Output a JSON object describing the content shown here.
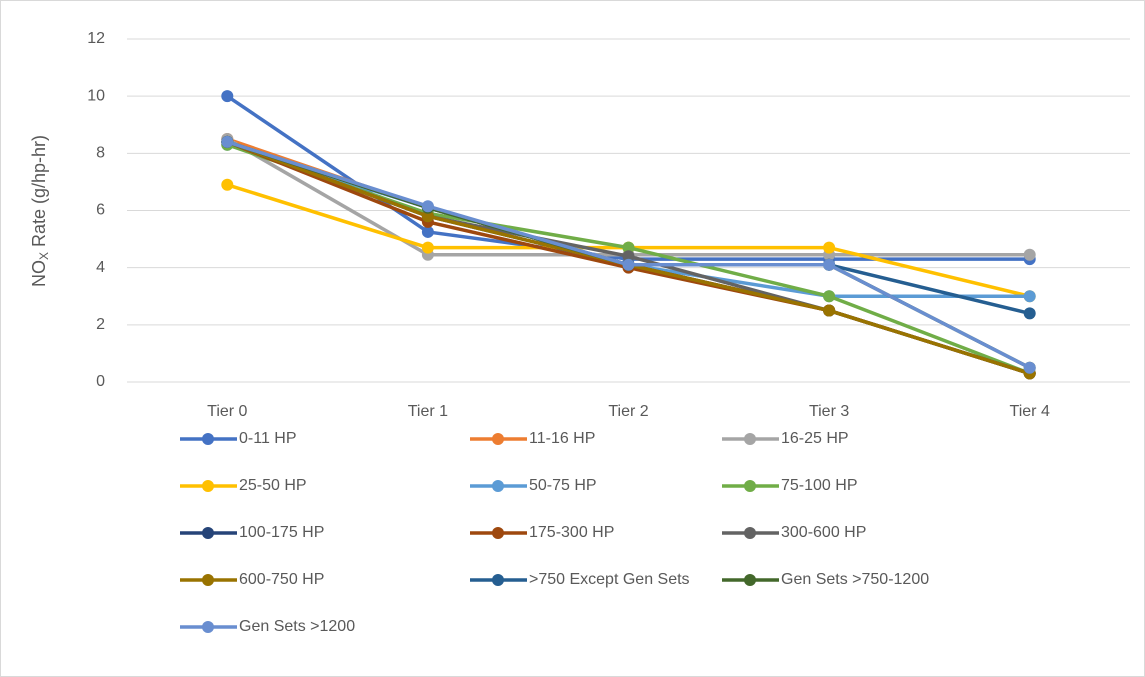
{
  "chart_data": {
    "type": "line",
    "y_label": {
      "main": "NO",
      "sub": "X",
      "rest": " Rate (g/hp-hr)"
    },
    "categories": [
      "Tier 0",
      "Tier 1",
      "Tier 2",
      "Tier 3",
      "Tier 4"
    ],
    "ylim": [
      0,
      12
    ],
    "yticks": [
      0,
      2,
      4,
      6,
      8,
      10,
      12
    ],
    "grid": true,
    "series": [
      {
        "name": "0-11 HP",
        "color": "#4472c4",
        "values": [
          10,
          5.25,
          4.3,
          4.3,
          4.3
        ]
      },
      {
        "name": "11-16 HP",
        "color": "#ed7d31",
        "values": [
          8.5,
          6.1,
          4.1,
          2.5,
          0.3
        ]
      },
      {
        "name": "16-25 HP",
        "color": "#a5a5a5",
        "values": [
          8.5,
          4.45,
          4.45,
          4.45,
          4.45
        ]
      },
      {
        "name": "25-50 HP",
        "color": "#ffc000",
        "values": [
          6.9,
          4.7,
          4.7,
          4.7,
          3.0
        ]
      },
      {
        "name": "50-75 HP",
        "color": "#5b9bd5",
        "values": [
          8.3,
          6.1,
          4.1,
          3.0,
          3.0
        ]
      },
      {
        "name": "75-100 HP",
        "color": "#70ad47",
        "values": [
          8.3,
          5.9,
          4.7,
          3.0,
          0.3
        ]
      },
      {
        "name": "100-175 HP",
        "color": "#264478",
        "values": [
          8.4,
          5.8,
          4.1,
          2.5,
          0.3
        ]
      },
      {
        "name": "175-300 HP",
        "color": "#9e480e",
        "values": [
          8.4,
          5.6,
          4.0,
          2.5,
          0.3
        ]
      },
      {
        "name": "300-600 HP",
        "color": "#636363",
        "values": [
          8.4,
          5.8,
          4.4,
          2.5,
          0.3
        ]
      },
      {
        "name": "600-750 HP",
        "color": "#997300",
        "values": [
          8.4,
          5.8,
          4.1,
          2.5,
          0.3
        ]
      },
      {
        "name": ">750 Except Gen Sets",
        "color": "#255e91",
        "values": [
          8.4,
          6.1,
          4.1,
          4.1,
          2.4
        ]
      },
      {
        "name": "Gen Sets >750-1200",
        "color": "#43682b",
        "values": [
          8.4,
          6.1,
          4.1,
          4.1,
          0.5
        ]
      },
      {
        "name": "Gen Sets >1200",
        "color": "#698ed0",
        "values": [
          8.4,
          6.15,
          4.1,
          4.1,
          0.5
        ]
      }
    ]
  }
}
